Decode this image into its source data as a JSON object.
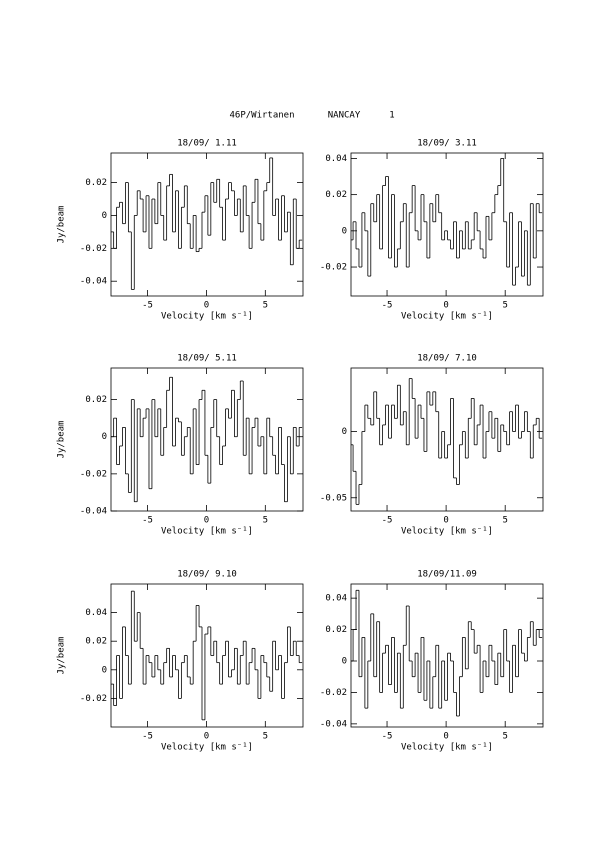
{
  "header": {
    "object": "46P/Wirtanen",
    "site": "NANCAY",
    "page": "1"
  },
  "chart_data": [
    {
      "type": "line",
      "step": true,
      "color": "#000000",
      "title": "18/09/ 1.11",
      "x_label": "Velocity [km s⁻¹]",
      "y_label": "Jy/beam",
      "xlim": [
        -8.1,
        8.2
      ],
      "ylim": [
        -0.049,
        0.038
      ],
      "xticks": [
        -5,
        0,
        5
      ],
      "yticks": [
        -0.04,
        -0.02,
        0,
        0.02
      ],
      "x": [
        -8,
        -7.75,
        -7.5,
        -7.25,
        -7,
        -6.75,
        -6.5,
        -6.25,
        -6,
        -5.75,
        -5.5,
        -5.25,
        -5,
        -4.75,
        -4.5,
        -4.25,
        -4,
        -3.75,
        -3.5,
        -3.25,
        -3,
        -2.75,
        -2.5,
        -2.25,
        -2,
        -1.75,
        -1.5,
        -1.25,
        -1,
        -0.75,
        -0.5,
        -0.25,
        0,
        0.25,
        0.5,
        0.75,
        1,
        1.25,
        1.5,
        1.75,
        2,
        2.25,
        2.5,
        2.75,
        3,
        3.25,
        3.5,
        3.75,
        4,
        4.25,
        4.5,
        4.75,
        5,
        5.25,
        5.5,
        5.75,
        6,
        6.25,
        6.5,
        6.75,
        7,
        7.25,
        7.5,
        7.75,
        8
      ],
      "values": [
        -0.01,
        -0.02,
        0.005,
        0.008,
        -0.005,
        0.02,
        -0.01,
        -0.045,
        0,
        0.015,
        0.01,
        -0.01,
        0.012,
        -0.02,
        0.01,
        -0.005,
        0.02,
        0,
        -0.015,
        0.018,
        0.025,
        -0.01,
        0.015,
        -0.02,
        0.005,
        0.018,
        -0.005,
        -0.02,
        0,
        -0.022,
        -0.02,
        0.002,
        0.012,
        -0.012,
        0.02,
        0.008,
        0.022,
        0.005,
        -0.015,
        0.01,
        0.02,
        0.015,
        0,
        0.01,
        -0.01,
        0.018,
        0,
        -0.02,
        0.008,
        0.022,
        -0.005,
        -0.015,
        0.015,
        0.02,
        0.035,
        0,
        0.01,
        -0.015,
        0.012,
        -0.01,
        0.002,
        -0.03,
        0.01,
        -0.02,
        -0.015
      ]
    },
    {
      "type": "line",
      "step": true,
      "color": "#000000",
      "title": "18/09/ 3.11",
      "x_label": "Velocity [km s⁻¹]",
      "xlim": [
        -8.05,
        8.2
      ],
      "ylim": [
        -0.036,
        0.043
      ],
      "xticks": [
        -5,
        0,
        5
      ],
      "yticks": [
        -0.02,
        0,
        0.02,
        0.04
      ],
      "x": [
        -8,
        -7.75,
        -7.5,
        -7.25,
        -7,
        -6.75,
        -6.5,
        -6.25,
        -6,
        -5.75,
        -5.5,
        -5.25,
        -5,
        -4.75,
        -4.5,
        -4.25,
        -4,
        -3.75,
        -3.5,
        -3.25,
        -3,
        -2.75,
        -2.5,
        -2.25,
        -2,
        -1.75,
        -1.5,
        -1.25,
        -1,
        -0.75,
        -0.5,
        -0.25,
        0,
        0.25,
        0.5,
        0.75,
        1,
        1.25,
        1.5,
        1.75,
        2,
        2.25,
        2.5,
        2.75,
        3,
        3.25,
        3.5,
        3.75,
        4,
        4.25,
        4.5,
        4.75,
        5,
        5.25,
        5.5,
        5.75,
        6,
        6.25,
        6.5,
        6.75,
        7,
        7.25,
        7.5,
        7.75,
        8
      ],
      "values": [
        -0.005,
        0.005,
        -0.01,
        -0.02,
        0.01,
        0,
        -0.025,
        0.015,
        0.005,
        0.02,
        -0.01,
        0.025,
        0.03,
        -0.015,
        0.02,
        -0.02,
        -0.01,
        0.005,
        0.015,
        -0.02,
        0.01,
        0.025,
        0,
        -0.005,
        0.02,
        0.005,
        -0.015,
        0.015,
        0.005,
        0.02,
        0.01,
        -0.005,
        0,
        -0.005,
        -0.01,
        0.005,
        -0.015,
        0,
        -0.01,
        0.005,
        -0.01,
        -0.005,
        0.01,
        0,
        -0.01,
        -0.015,
        0.008,
        -0.005,
        0.01,
        0.02,
        0.025,
        0.04,
        0.005,
        -0.02,
        0.01,
        -0.03,
        -0.02,
        0.005,
        -0.025,
        0,
        -0.03,
        0.015,
        -0.015,
        0.015,
        0.01
      ]
    },
    {
      "type": "line",
      "step": true,
      "color": "#000000",
      "title": "18/09/ 5.11",
      "x_label": "Velocity [km s⁻¹]",
      "y_label": "Jy/beam",
      "xlim": [
        -8.1,
        8.2
      ],
      "ylim": [
        -0.04,
        0.037
      ],
      "xticks": [
        -5,
        0,
        5
      ],
      "yticks": [
        -0.04,
        -0.02,
        0,
        0.02
      ],
      "x": [
        -8,
        -7.75,
        -7.5,
        -7.25,
        -7,
        -6.75,
        -6.5,
        -6.25,
        -6,
        -5.75,
        -5.5,
        -5.25,
        -5,
        -4.75,
        -4.5,
        -4.25,
        -4,
        -3.75,
        -3.5,
        -3.25,
        -3,
        -2.75,
        -2.5,
        -2.25,
        -2,
        -1.75,
        -1.5,
        -1.25,
        -1,
        -0.75,
        -0.5,
        -0.25,
        0,
        0.25,
        0.5,
        0.75,
        1,
        1.25,
        1.5,
        1.75,
        2,
        2.25,
        2.5,
        2.75,
        3,
        3.25,
        3.5,
        3.75,
        4,
        4.25,
        4.5,
        4.75,
        5,
        5.25,
        5.5,
        5.75,
        6,
        6.25,
        6.5,
        6.75,
        7,
        7.25,
        7.5,
        7.75,
        8
      ],
      "values": [
        0,
        0.01,
        -0.015,
        -0.005,
        0.005,
        -0.02,
        -0.03,
        0.02,
        -0.035,
        0.015,
        0,
        0.01,
        0.015,
        -0.028,
        0.02,
        0,
        0.015,
        -0.01,
        0.005,
        0.025,
        0.032,
        -0.005,
        0.01,
        0.008,
        -0.01,
        0,
        0.005,
        -0.02,
        0.015,
        -0.015,
        0.02,
        0.025,
        -0.01,
        -0.025,
        0.005,
        0.02,
        0,
        -0.015,
        -0.005,
        0.015,
        0.01,
        0.025,
        0,
        0.02,
        0.03,
        -0.01,
        0.01,
        -0.02,
        0.005,
        0.01,
        -0.005,
        0,
        -0.02,
        0.01,
        0,
        -0.01,
        -0.02,
        0.005,
        -0.015,
        -0.035,
        0,
        -0.02,
        0.005,
        -0.005,
        0.005
      ]
    },
    {
      "type": "line",
      "step": true,
      "color": "#000000",
      "title": "18/09/ 7.10",
      "x_label": "Velocity [km s⁻¹]",
      "xlim": [
        -8.05,
        8.2
      ],
      "ylim": [
        -0.06,
        0.048
      ],
      "xticks": [
        -5,
        0,
        5
      ],
      "yticks": [
        -0.05,
        0
      ],
      "x": [
        -8,
        -7.75,
        -7.5,
        -7.25,
        -7,
        -6.75,
        -6.5,
        -6.25,
        -6,
        -5.75,
        -5.5,
        -5.25,
        -5,
        -4.75,
        -4.5,
        -4.25,
        -4,
        -3.75,
        -3.5,
        -3.25,
        -3,
        -2.75,
        -2.5,
        -2.25,
        -2,
        -1.75,
        -1.5,
        -1.25,
        -1,
        -0.75,
        -0.5,
        -0.25,
        0,
        0.25,
        0.5,
        0.75,
        1,
        1.25,
        1.5,
        1.75,
        2,
        2.25,
        2.5,
        2.75,
        3,
        3.25,
        3.5,
        3.75,
        4,
        4.25,
        4.5,
        4.75,
        5,
        5.25,
        5.5,
        5.75,
        6,
        6.25,
        6.5,
        6.75,
        7,
        7.25,
        7.5,
        7.75,
        8
      ],
      "values": [
        -0.01,
        -0.03,
        -0.055,
        -0.04,
        0,
        0.02,
        0.01,
        0.005,
        0.03,
        0.01,
        -0.01,
        0.005,
        0.02,
        -0.005,
        0.02,
        0.01,
        0.035,
        0.005,
        0.015,
        -0.01,
        0.04,
        0.025,
        -0.005,
        0.02,
        0.01,
        -0.015,
        0.03,
        0.02,
        0.03,
        0.015,
        -0.02,
        0,
        -0.02,
        -0.01,
        0.025,
        -0.035,
        -0.04,
        -0.01,
        0,
        -0.02,
        0.01,
        0.025,
        -0.01,
        0.005,
        0.02,
        -0.02,
        0,
        0.015,
        -0.005,
        0.01,
        -0.015,
        0.005,
        0,
        -0.01,
        0.015,
        0,
        0.02,
        -0.005,
        0,
        0.015,
        0,
        -0.02,
        0.005,
        0.01,
        -0.005
      ]
    },
    {
      "type": "line",
      "step": true,
      "color": "#000000",
      "title": "18/09/ 9.10",
      "x_label": "Velocity [km s⁻¹]",
      "y_label": "Jy/beam",
      "xlim": [
        -8.1,
        8.2
      ],
      "ylim": [
        -0.04,
        0.06
      ],
      "xticks": [
        -5,
        0,
        5
      ],
      "yticks": [
        -0.02,
        0,
        0.02,
        0.04
      ],
      "x": [
        -8,
        -7.75,
        -7.5,
        -7.25,
        -7,
        -6.75,
        -6.5,
        -6.25,
        -6,
        -5.75,
        -5.5,
        -5.25,
        -5,
        -4.75,
        -4.5,
        -4.25,
        -4,
        -3.75,
        -3.5,
        -3.25,
        -3,
        -2.75,
        -2.5,
        -2.25,
        -2,
        -1.75,
        -1.5,
        -1.25,
        -1,
        -0.75,
        -0.5,
        -0.25,
        0,
        0.25,
        0.5,
        0.75,
        1,
        1.25,
        1.5,
        1.75,
        2,
        2.25,
        2.5,
        2.75,
        3,
        3.25,
        3.5,
        3.75,
        4,
        4.25,
        4.5,
        4.75,
        5,
        5.25,
        5.5,
        5.75,
        6,
        6.25,
        6.5,
        6.75,
        7,
        7.25,
        7.5,
        7.75,
        8
      ],
      "values": [
        -0.01,
        -0.025,
        0.01,
        -0.02,
        0.03,
        0.01,
        -0.01,
        0.055,
        0.02,
        0.04,
        0.015,
        -0.01,
        0.01,
        0.005,
        -0.005,
        0.01,
        0,
        -0.01,
        0.005,
        0.015,
        -0.005,
        0.01,
        0,
        -0.02,
        0.005,
        0.01,
        -0.005,
        -0.01,
        0.02,
        0.045,
        0.03,
        -0.035,
        0.025,
        0.03,
        0.01,
        0.02,
        0.005,
        -0.01,
        0.01,
        0.02,
        -0.005,
        0,
        0.015,
        -0.01,
        0.01,
        0.02,
        -0.01,
        0.005,
        0.015,
        0,
        -0.02,
        0.01,
        0.005,
        -0.005,
        -0.015,
        0.02,
        0,
        0.01,
        -0.02,
        0.005,
        0.03,
        0.01,
        0.02,
        0.01,
        0.005
      ]
    },
    {
      "type": "line",
      "step": true,
      "color": "#000000",
      "title": "18/09/11.09",
      "x_label": "Velocity [km s⁻¹]",
      "xlim": [
        -8.05,
        8.2
      ],
      "ylim": [
        -0.042,
        0.049
      ],
      "xticks": [
        -5,
        0,
        5
      ],
      "yticks": [
        -0.04,
        -0.02,
        0,
        0.02,
        0.04
      ],
      "x": [
        -8,
        -7.75,
        -7.5,
        -7.25,
        -7,
        -6.75,
        -6.5,
        -6.25,
        -6,
        -5.75,
        -5.5,
        -5.25,
        -5,
        -4.75,
        -4.5,
        -4.25,
        -4,
        -3.75,
        -3.5,
        -3.25,
        -3,
        -2.75,
        -2.5,
        -2.25,
        -2,
        -1.75,
        -1.5,
        -1.25,
        -1,
        -0.75,
        -0.5,
        -0.25,
        0,
        0.25,
        0.5,
        0.75,
        1,
        1.25,
        1.5,
        1.75,
        2,
        2.25,
        2.5,
        2.75,
        3,
        3.25,
        3.5,
        3.75,
        4,
        4.25,
        4.5,
        4.75,
        5,
        5.25,
        5.5,
        5.75,
        6,
        6.25,
        6.5,
        6.75,
        7,
        7.25,
        7.5,
        7.75,
        8
      ],
      "values": [
        0,
        0.02,
        0.045,
        -0.01,
        0.015,
        -0.03,
        0,
        0.03,
        -0.01,
        0.025,
        -0.02,
        0.005,
        0.01,
        -0.015,
        0.015,
        -0.02,
        0.005,
        -0.03,
        0.01,
        0.035,
        0,
        -0.01,
        0.005,
        -0.02,
        0.015,
        -0.025,
        0,
        -0.03,
        -0.01,
        0.01,
        -0.03,
        0,
        -0.025,
        0.005,
        0,
        -0.02,
        -0.035,
        -0.01,
        0.015,
        -0.005,
        0.025,
        0.02,
        0.005,
        0.01,
        -0.02,
        0,
        -0.01,
        0.01,
        0,
        -0.015,
        0.005,
        -0.01,
        0.02,
        0,
        -0.02,
        0.01,
        -0.01,
        0.02,
        0.005,
        0,
        0.015,
        0.025,
        0.01,
        0.02,
        0.015
      ]
    }
  ]
}
